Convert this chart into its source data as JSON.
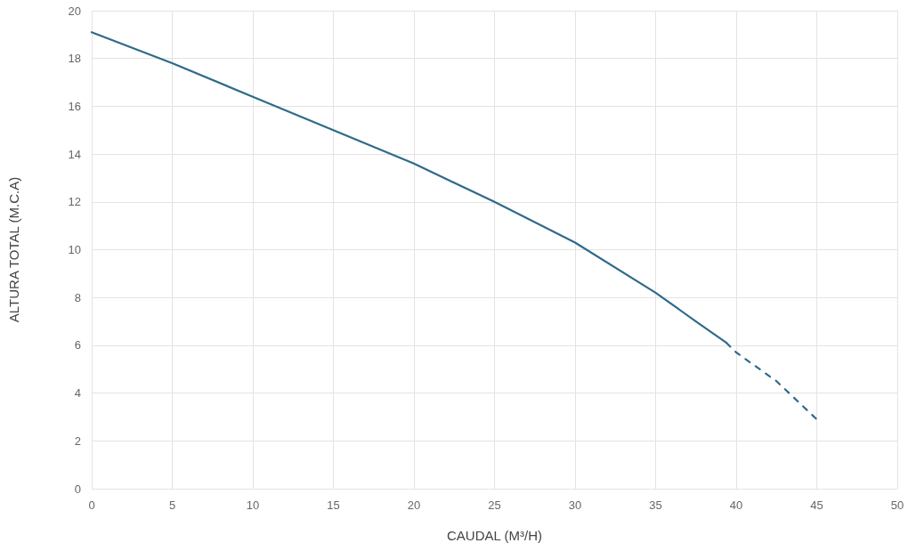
{
  "chart_data": {
    "type": "line",
    "xlabel": "CAUDAL (M³/H)",
    "ylabel": "ALTURA TOTAL (M.C.A)",
    "xlim": [
      0,
      50
    ],
    "xticks": [
      0,
      5,
      10,
      15,
      20,
      25,
      30,
      35,
      40,
      45,
      50
    ],
    "ylim": [
      0,
      20
    ],
    "yticks": [
      0,
      2,
      4,
      6,
      8,
      10,
      12,
      14,
      16,
      18,
      20
    ],
    "grid": true,
    "marker": "none",
    "series": [
      {
        "color": "#2f6a8a",
        "line_style": "solid",
        "x": [
          0,
          5,
          10,
          15,
          20,
          25,
          30,
          35,
          37.5,
          39.4
        ],
        "values": [
          19.1,
          17.8,
          16.4,
          15.0,
          13.6,
          12.0,
          10.3,
          8.2,
          7.0,
          6.1
        ]
      },
      {
        "color": "#2f6a8a",
        "line_style": "dashed",
        "x": [
          39.4,
          40,
          42.5,
          45
        ],
        "values": [
          6.1,
          5.7,
          4.5,
          2.9
        ]
      }
    ]
  }
}
